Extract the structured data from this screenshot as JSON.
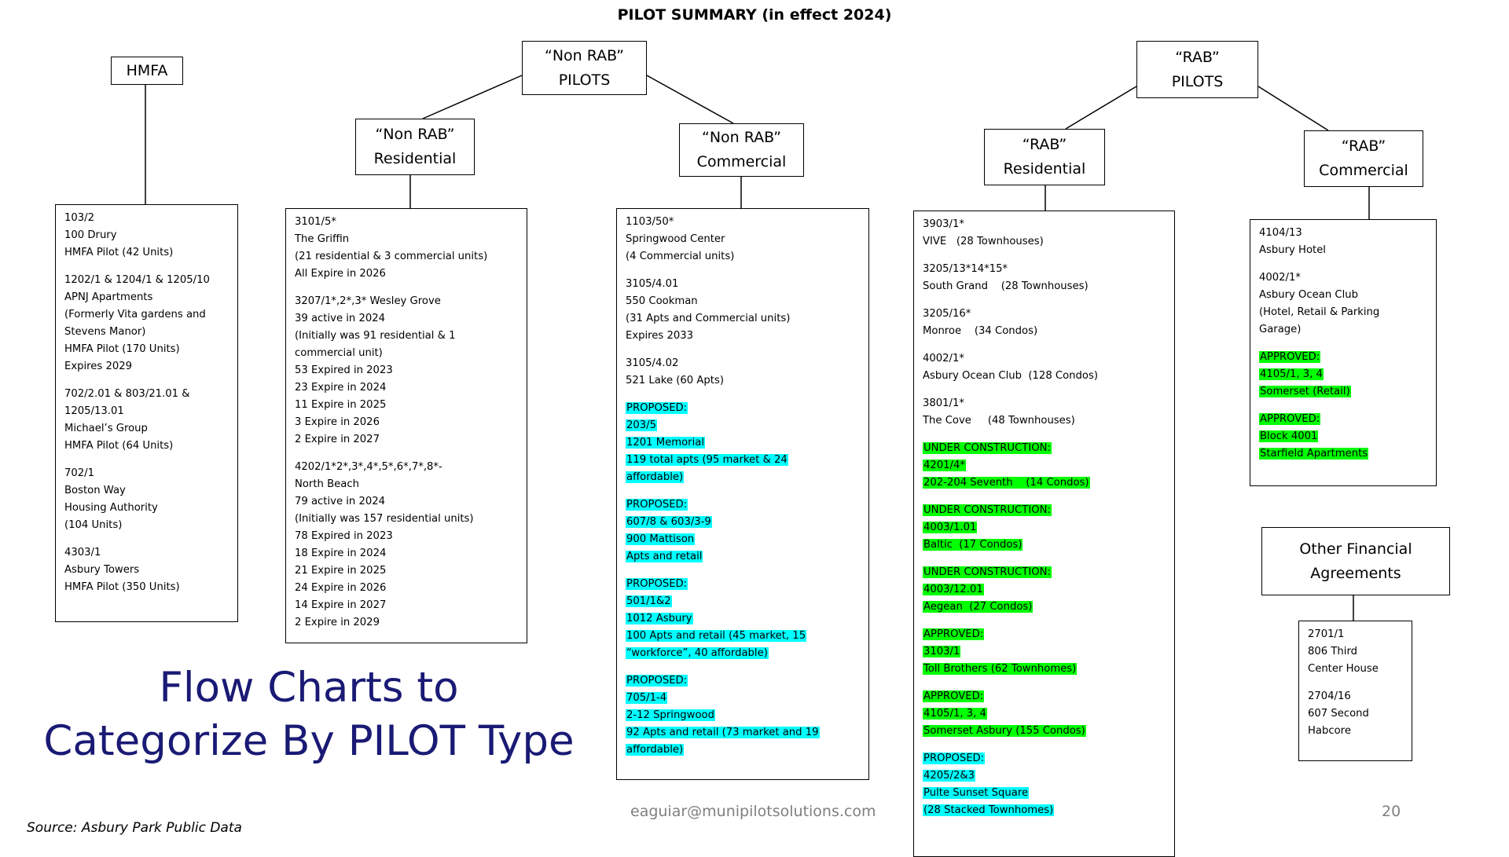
{
  "title": "PILOT SUMMARY (in effect 2024)",
  "headers": {
    "hmfa": [
      "HMFA"
    ],
    "non_rab": [
      "“Non RAB”",
      "PILOTS"
    ],
    "non_rab_res": [
      "“Non RAB”",
      "Residential"
    ],
    "non_rab_com": [
      "“Non RAB”",
      "Commercial"
    ],
    "rab": [
      "“RAB”",
      "PILOTS"
    ],
    "rab_res": [
      "“RAB”",
      "Residential"
    ],
    "rab_com": [
      "“RAB”",
      "Commercial"
    ],
    "other": [
      "Other Financial",
      "Agreements"
    ]
  },
  "boxes": {
    "hmfa": [
      {
        "lines": [
          "103/2",
          "100 Drury",
          "HMFA Pilot (42 Units)"
        ]
      },
      {
        "lines": [
          "1202/1 & 1204/1 & 1205/10",
          "APNJ Apartments",
          "(Formerly Vita gardens and",
          "Stevens Manor)",
          "HMFA Pilot (170 Units)",
          "Expires 2029"
        ]
      },
      {
        "lines": [
          "702/2.01 & 803/21.01 &",
          "1205/13.01",
          "Michael’s Group",
          "HMFA Pilot (64 Units)"
        ]
      },
      {
        "lines": [
          "702/1",
          "Boston Way",
          "Housing Authority",
          "(104 Units)"
        ]
      },
      {
        "lines": [
          "4303/1",
          "Asbury Towers",
          "HMFA Pilot (350 Units)"
        ]
      }
    ],
    "non_rab_res": [
      {
        "lines": [
          "3101/5*",
          "The Griffin",
          "(21 residential & 3 commercial units)",
          "All Expire in 2026"
        ]
      },
      {
        "lines": [
          "3207/1*,2*,3* Wesley Grove",
          "39 active in 2024",
          "(Initially was 91 residential & 1",
          "commercial unit)",
          "53 Expired in 2023",
          "23 Expire in 2024",
          "11 Expire in 2025",
          "3 Expire in 2026",
          "2 Expire in 2027"
        ]
      },
      {
        "lines": [
          "4202/1*2*,3*,4*,5*,6*,7*,8*-",
          "North Beach",
          "79 active in 2024",
          "(Initially was 157 residential units)",
          "78 Expired in 2023",
          "18 Expire in 2024",
          "21 Expire in 2025",
          "24 Expire in 2026",
          "14 Expire in 2027",
          "2 Expire in 2029"
        ]
      }
    ],
    "non_rab_com": [
      {
        "lines": [
          "1103/50*",
          "Springwood Center",
          "(4 Commercial units)"
        ]
      },
      {
        "lines": [
          "3105/4.01",
          "550 Cookman",
          "(31 Apts and Commercial units)",
          "Expires 2033"
        ]
      },
      {
        "lines": [
          "3105/4.02",
          "521 Lake (60 Apts)"
        ]
      },
      {
        "hl": "cyan",
        "lines": [
          "PROPOSED:",
          "203/5",
          "1201 Memorial",
          "119 total apts (95 market & 24",
          "affordable)"
        ]
      },
      {
        "hl": "cyan",
        "lines": [
          "PROPOSED:",
          "607/8 & 603/3-9",
          "900 Mattison",
          "Apts and retail"
        ]
      },
      {
        "hl": "cyan",
        "lines": [
          "PROPOSED:",
          "501/1&2",
          "1012 Asbury",
          "100 Apts and retail (45 market, 15",
          "“workforce”, 40 affordable)"
        ]
      },
      {
        "hl": "cyan",
        "lines": [
          "PROPOSED:",
          "705/1-4",
          "2-12 Springwood",
          "92 Apts and retail (73 market and 19",
          "affordable)"
        ]
      }
    ],
    "rab_res": [
      {
        "lines": [
          "3903/1*",
          "VIVE   (28 Townhouses)"
        ]
      },
      {
        "lines": [
          "3205/13*14*15*",
          "South Grand    (28 Townhouses)"
        ]
      },
      {
        "lines": [
          "3205/16*",
          "Monroe    (34 Condos)"
        ]
      },
      {
        "lines": [
          "4002/1*",
          "Asbury Ocean Club  (128 Condos)"
        ]
      },
      {
        "lines": [
          "3801/1*",
          "The Cove     (48 Townhouses)"
        ]
      },
      {
        "hl": "green",
        "lines": [
          "UNDER CONSTRUCTION:",
          "4201/4*",
          "202-204 Seventh    (14 Condos)"
        ]
      },
      {
        "hl": "green",
        "lines": [
          "UNDER CONSTRUCTION:",
          "4003/1.01",
          "Baltic  (17 Condos)"
        ]
      },
      {
        "hl": "green",
        "lines": [
          "UNDER CONSTRUCTION:",
          "4003/12.01",
          "Aegean  (27 Condos)"
        ]
      },
      {
        "hl": "green",
        "lines": [
          "APPROVED:",
          "3103/1",
          "Toll Brothers (62 Townhomes)"
        ]
      },
      {
        "hl": "green",
        "lines": [
          "APPROVED:",
          "4105/1, 3, 4",
          "Somerset Asbury (155 Condos)"
        ]
      },
      {
        "hl": "cyan",
        "lines": [
          "PROPOSED:",
          "4205/2&3",
          "Pulte Sunset Square",
          "(28 Stacked Townhomes)"
        ]
      }
    ],
    "rab_com": [
      {
        "lines": [
          "4104/13",
          "Asbury Hotel"
        ]
      },
      {
        "lines": [
          "4002/1*",
          "Asbury Ocean Club",
          "(Hotel, Retail & Parking",
          "Garage)"
        ]
      },
      {
        "hl": "green",
        "lines": [
          "APPROVED:",
          "4105/1, 3, 4",
          "Somerset (Retail)"
        ]
      },
      {
        "hl": "green",
        "lines": [
          "APPROVED:",
          "Block 4001",
          "Starfield Apartments"
        ]
      }
    ],
    "other": [
      {
        "lines": [
          "2701/1",
          "806 Third",
          "Center House"
        ]
      },
      {
        "lines": [
          "2704/16",
          "607 Second",
          "Habcore"
        ]
      }
    ]
  },
  "overlay": {
    "line1": "Flow Charts to",
    "line2": "Categorize By PILOT Type"
  },
  "footer": {
    "source": "Source: Asbury Park Public Data",
    "email": "eaguiar@munipilotsolutions.com",
    "page_number": "20"
  },
  "colors": {
    "proposed_highlight": "#00ffff",
    "approved_highlight": "#00ff00",
    "overlay_text": "#1a1a75",
    "footer_text": "#7f7f7f"
  }
}
